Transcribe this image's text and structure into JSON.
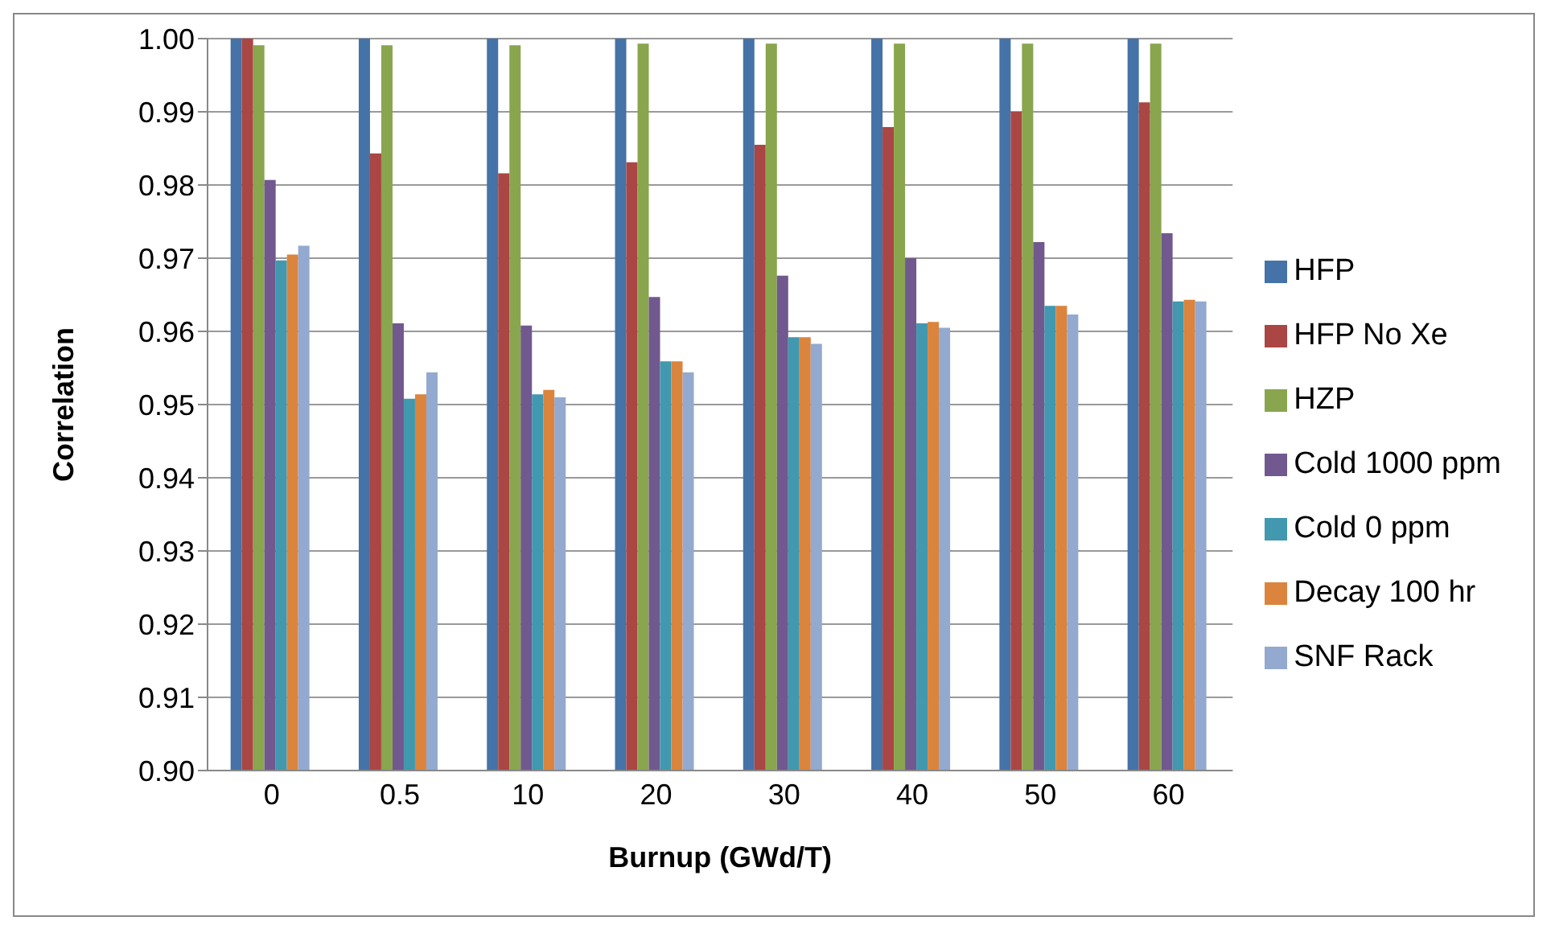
{
  "chart_data": {
    "type": "bar",
    "xlabel": "Burnup (GWd/T)",
    "ylabel": "Correlation",
    "categories": [
      "0",
      "0.5",
      "10",
      "20",
      "30",
      "40",
      "50",
      "60"
    ],
    "series": [
      {
        "name": "HFP",
        "color": "#4572a7",
        "values": [
          1.0,
          1.0,
          1.0,
          1.0,
          1.0,
          1.0,
          1.0,
          1.0
        ]
      },
      {
        "name": "HFP No Xe",
        "color": "#aa4643",
        "values": [
          1.0,
          0.9843,
          0.9816,
          0.9831,
          0.9855,
          0.9879,
          0.99,
          0.9913
        ]
      },
      {
        "name": "HZP",
        "color": "#89a54e",
        "values": [
          0.9991,
          0.9991,
          0.9991,
          0.9993,
          0.9993,
          0.9993,
          0.9993,
          0.9993
        ]
      },
      {
        "name": "Cold 1000 ppm",
        "color": "#71588f",
        "values": [
          0.9807,
          0.9611,
          0.9608,
          0.9647,
          0.9676,
          0.97,
          0.9722,
          0.9734
        ]
      },
      {
        "name": "Cold 0 ppm",
        "color": "#4198af",
        "values": [
          0.9697,
          0.9508,
          0.9514,
          0.9559,
          0.9592,
          0.9611,
          0.9635,
          0.9641
        ]
      },
      {
        "name": "Decay 100 hr",
        "color": "#db843d",
        "values": [
          0.9705,
          0.9514,
          0.952,
          0.9559,
          0.9592,
          0.9613,
          0.9635,
          0.9643
        ]
      },
      {
        "name": "SNF Rack",
        "color": "#93a9cf",
        "values": [
          0.9717,
          0.9544,
          0.951,
          0.9544,
          0.9583,
          0.9605,
          0.9623,
          0.9641
        ]
      }
    ],
    "ylim": [
      0.9,
      1.0
    ],
    "yticks": [
      {
        "value": 0.9,
        "label": "0.90"
      },
      {
        "value": 0.91,
        "label": "0.91"
      },
      {
        "value": 0.92,
        "label": "0.92"
      },
      {
        "value": 0.93,
        "label": "0.93"
      },
      {
        "value": 0.94,
        "label": "0.94"
      },
      {
        "value": 0.95,
        "label": "0.95"
      },
      {
        "value": 0.96,
        "label": "0.96"
      },
      {
        "value": 0.97,
        "label": "0.97"
      },
      {
        "value": 0.98,
        "label": "0.98"
      },
      {
        "value": 0.99,
        "label": "0.99"
      },
      {
        "value": 1.0,
        "label": "1.00"
      }
    ],
    "grid": "y",
    "legend": "right"
  }
}
